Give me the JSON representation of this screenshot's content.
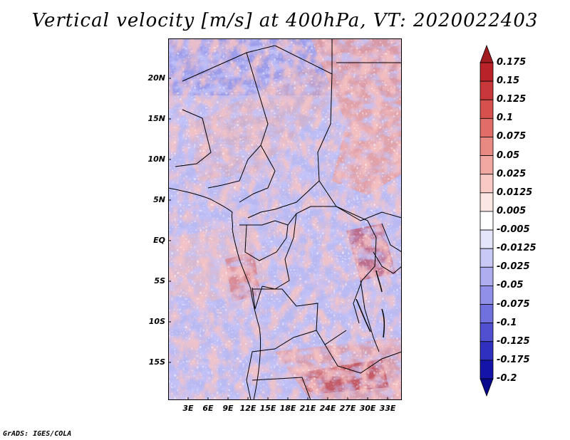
{
  "title": "Vertical velocity [m/s] at 400hPa, VT: 2020022403",
  "credit": "GrADS: IGES/COLA",
  "lat_labels": [
    "20N",
    "15N",
    "10N",
    "5N",
    "EQ",
    "5S",
    "10S",
    "15S"
  ],
  "lon_labels": [
    "3E",
    "6E",
    "9E",
    "12E",
    "15E",
    "18E",
    "21E",
    "24E",
    "27E",
    "30E",
    "33E"
  ],
  "colorbar": {
    "labels": [
      "0.175",
      "0.15",
      "0.125",
      "0.1",
      "0.075",
      "0.05",
      "0.025",
      "0.0125",
      "0.005",
      "-0.005",
      "-0.0125",
      "-0.025",
      "-0.05",
      "-0.075",
      "-0.1",
      "-0.125",
      "-0.175",
      "-0.2"
    ],
    "colors": [
      "#a01c20",
      "#b82228",
      "#c8373a",
      "#d6514e",
      "#e06d66",
      "#e98a82",
      "#f2a8a2",
      "#f8c9c5",
      "#fce6e4",
      "#ffffff",
      "#e4e4fb",
      "#c9c9f6",
      "#adadf0",
      "#9090e8",
      "#7070de",
      "#5050d0",
      "#3030c0",
      "#1414a8",
      "#08088c"
    ]
  }
}
